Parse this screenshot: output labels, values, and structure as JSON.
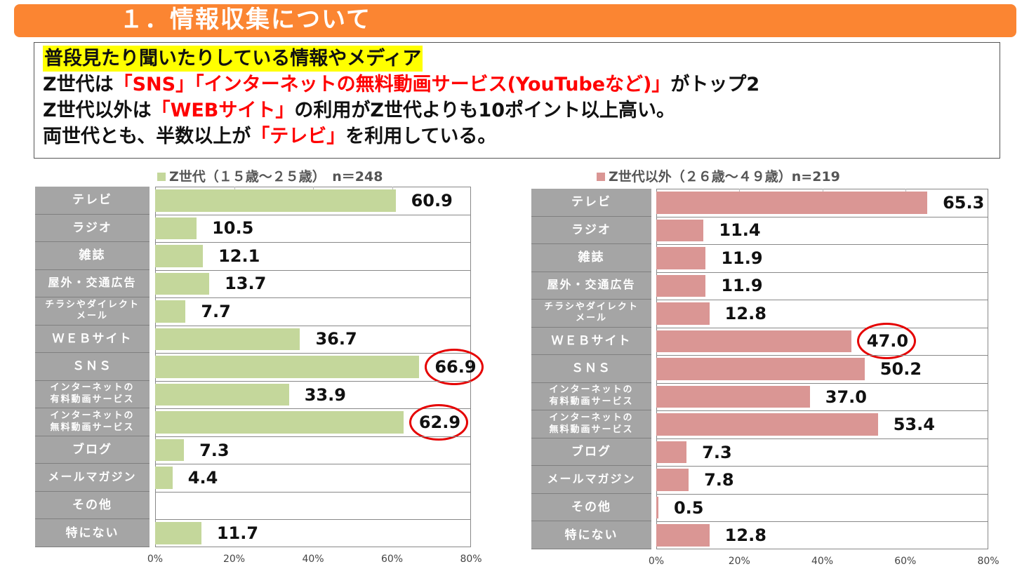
{
  "header": {
    "title": "１．情報収集について"
  },
  "summary": {
    "heading": "普段見たり聞いたりしている情報やメディア",
    "line1": [
      "Z世代は",
      "「SNS」「インターネットの無料動画サービス(YouTubeなど)」",
      "がトップ2"
    ],
    "line2": [
      "Z世代以外は",
      "「WEBサイト」",
      "の利用がZ世代よりも10ポイント以上高い。"
    ],
    "line3": [
      "両世代とも、半数以上が",
      "「テレビ」",
      "を利用している。"
    ]
  },
  "chart_data": [
    {
      "type": "bar",
      "orientation": "horizontal",
      "legend": "Z世代（１５歳～２５歳）　n＝248",
      "color": "#c4d79b",
      "categories": [
        "テレビ",
        "ラジオ",
        "雑誌",
        "屋外・交通広告",
        "チラシやダイレクトメール",
        "ＷＥＢサイト",
        "ＳＮＳ",
        "インターネットの有料動画サービス",
        "インターネットの無料動画サービス",
        "ブログ",
        "メールマガジン",
        "その他",
        "特にない"
      ],
      "values": [
        60.9,
        10.5,
        12.1,
        13.7,
        7.7,
        36.7,
        66.9,
        33.9,
        62.9,
        7.3,
        4.4,
        null,
        11.7
      ],
      "xlim": [
        0,
        80
      ],
      "ticks": [
        "0%",
        "20%",
        "40%",
        "60%",
        "80%"
      ],
      "highlighted": [
        "ＳＮＳ",
        "インターネットの無料動画サービス"
      ]
    },
    {
      "type": "bar",
      "orientation": "horizontal",
      "legend": "Z世代以外（２６歳～４９歳）n=219",
      "color": "#da9694",
      "categories": [
        "テレビ",
        "ラジオ",
        "雑誌",
        "屋外・交通広告",
        "チラシやダイレクトメール",
        "ＷＥＢサイト",
        "ＳＮＳ",
        "インターネットの有料動画サービス",
        "インターネットの無料動画サービス",
        "ブログ",
        "メールマガジン",
        "その他",
        "特にない"
      ],
      "values": [
        65.3,
        11.4,
        11.9,
        11.9,
        12.8,
        47.0,
        50.2,
        37.0,
        53.4,
        7.3,
        7.8,
        0.5,
        12.8
      ],
      "xlim": [
        0,
        80
      ],
      "ticks": [
        "0%",
        "20%",
        "40%",
        "60%",
        "80%"
      ],
      "highlighted": [
        "ＷＥＢサイト"
      ]
    }
  ],
  "label_display": {
    "チラシやダイレクトメール": [
      "チラシやダイレクト",
      "メール"
    ],
    "インターネットの有料動画サービス": [
      "インターネットの",
      "有料動画サービス"
    ],
    "インターネットの無料動画サービス": [
      "インターネットの",
      "無料動画サービス"
    ]
  }
}
